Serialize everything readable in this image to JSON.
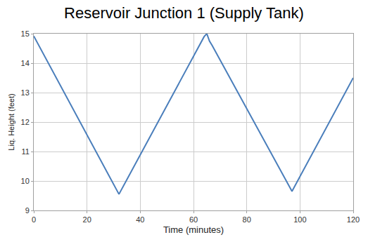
{
  "chart_data": {
    "type": "line",
    "title": "Reservoir Junction 1 (Supply Tank)",
    "x_label": "Time (minutes)",
    "y_label": "Liq. Height (feet)",
    "x": [
      0,
      32,
      64,
      65,
      66,
      67,
      97,
      120
    ],
    "values": [
      14.92,
      9.55,
      14.9,
      15.0,
      14.75,
      14.6,
      9.65,
      13.5
    ],
    "color": "#4a7ebb",
    "xlim": [
      0,
      120
    ],
    "xticks": [
      0,
      20,
      40,
      60,
      80,
      100,
      120
    ],
    "ylim": [
      9,
      15
    ],
    "yticks": [
      9,
      10,
      11,
      12,
      13,
      14,
      15
    ],
    "grid": true
  }
}
